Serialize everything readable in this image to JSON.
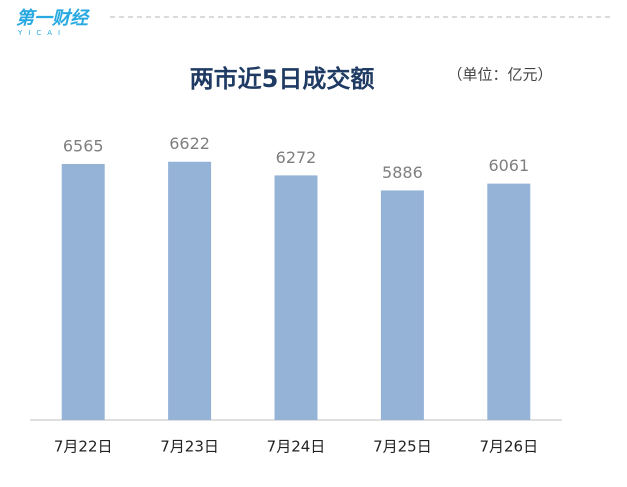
{
  "logo": {
    "text": "第一财经",
    "subtext": "YICAI"
  },
  "chart_data": {
    "type": "bar",
    "title": "两市近5日成交额",
    "subtitle": "（单位：亿元）",
    "categories": [
      "7月22日",
      "7月23日",
      "7月24日",
      "7月25日",
      "7月26日"
    ],
    "values": [
      6565,
      6622,
      6272,
      5886,
      6061
    ],
    "color": "#95b3d7",
    "ylim": [
      0,
      7000
    ],
    "grid": false
  }
}
